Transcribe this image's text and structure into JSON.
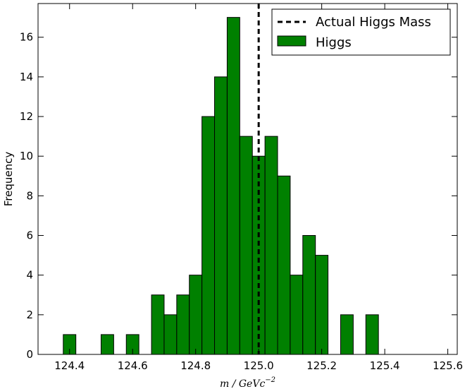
{
  "chart_data": {
    "type": "bar",
    "title": "",
    "xlabel": "m / GeVc",
    "xlabel_exponent": "−2",
    "ylabel": "Frequency",
    "xlim": [
      124.3,
      125.63
    ],
    "ylim": [
      0,
      17.7
    ],
    "xticks": [
      124.4,
      124.6,
      124.8,
      125.0,
      125.2,
      125.4,
      125.6
    ],
    "xtick_labels": [
      "124.4",
      "124.6",
      "124.8",
      "125.0",
      "125.2",
      "125.4",
      "125.6"
    ],
    "yticks": [
      0,
      2,
      4,
      6,
      8,
      10,
      12,
      14,
      16
    ],
    "ytick_labels": [
      "0",
      "2",
      "4",
      "6",
      "8",
      "10",
      "12",
      "14",
      "16"
    ],
    "bin_width": 0.04,
    "bins": [
      {
        "x0": 124.38,
        "x1": 124.42,
        "value": 1
      },
      {
        "x0": 124.42,
        "x1": 124.46,
        "value": 0
      },
      {
        "x0": 124.46,
        "x1": 124.5,
        "value": 0
      },
      {
        "x0": 124.5,
        "x1": 124.54,
        "value": 1
      },
      {
        "x0": 124.54,
        "x1": 124.58,
        "value": 0
      },
      {
        "x0": 124.58,
        "x1": 124.62,
        "value": 1
      },
      {
        "x0": 124.62,
        "x1": 124.66,
        "value": 0
      },
      {
        "x0": 124.66,
        "x1": 124.7,
        "value": 3
      },
      {
        "x0": 124.7,
        "x1": 124.74,
        "value": 2
      },
      {
        "x0": 124.74,
        "x1": 124.78,
        "value": 3
      },
      {
        "x0": 124.78,
        "x1": 124.82,
        "value": 4
      },
      {
        "x0": 124.82,
        "x1": 124.86,
        "value": 12
      },
      {
        "x0": 124.86,
        "x1": 124.9,
        "value": 14
      },
      {
        "x0": 124.9,
        "x1": 124.94,
        "value": 17
      },
      {
        "x0": 124.94,
        "x1": 124.98,
        "value": 11
      },
      {
        "x0": 124.98,
        "x1": 125.02,
        "value": 10
      },
      {
        "x0": 125.02,
        "x1": 125.06,
        "value": 11
      },
      {
        "x0": 125.06,
        "x1": 125.1,
        "value": 9
      },
      {
        "x0": 125.1,
        "x1": 125.14,
        "value": 4
      },
      {
        "x0": 125.14,
        "x1": 125.18,
        "value": 6
      },
      {
        "x0": 125.18,
        "x1": 125.22,
        "value": 5
      },
      {
        "x0": 125.22,
        "x1": 125.26,
        "value": 0
      },
      {
        "x0": 125.26,
        "x1": 125.3,
        "value": 2
      },
      {
        "x0": 125.3,
        "x1": 125.34,
        "value": 0
      },
      {
        "x0": 125.34,
        "x1": 125.38,
        "value": 2
      }
    ],
    "series": [
      {
        "name": "Higgs",
        "color": "#008000",
        "edge_color": "#000000"
      }
    ],
    "reference_line": {
      "name": "Actual Higgs Mass",
      "x": 125.0,
      "style": "dashed",
      "color": "#000000"
    },
    "legend": {
      "position": "top-right",
      "entries": [
        "Actual Higgs Mass",
        "Higgs"
      ]
    },
    "grid": false
  }
}
